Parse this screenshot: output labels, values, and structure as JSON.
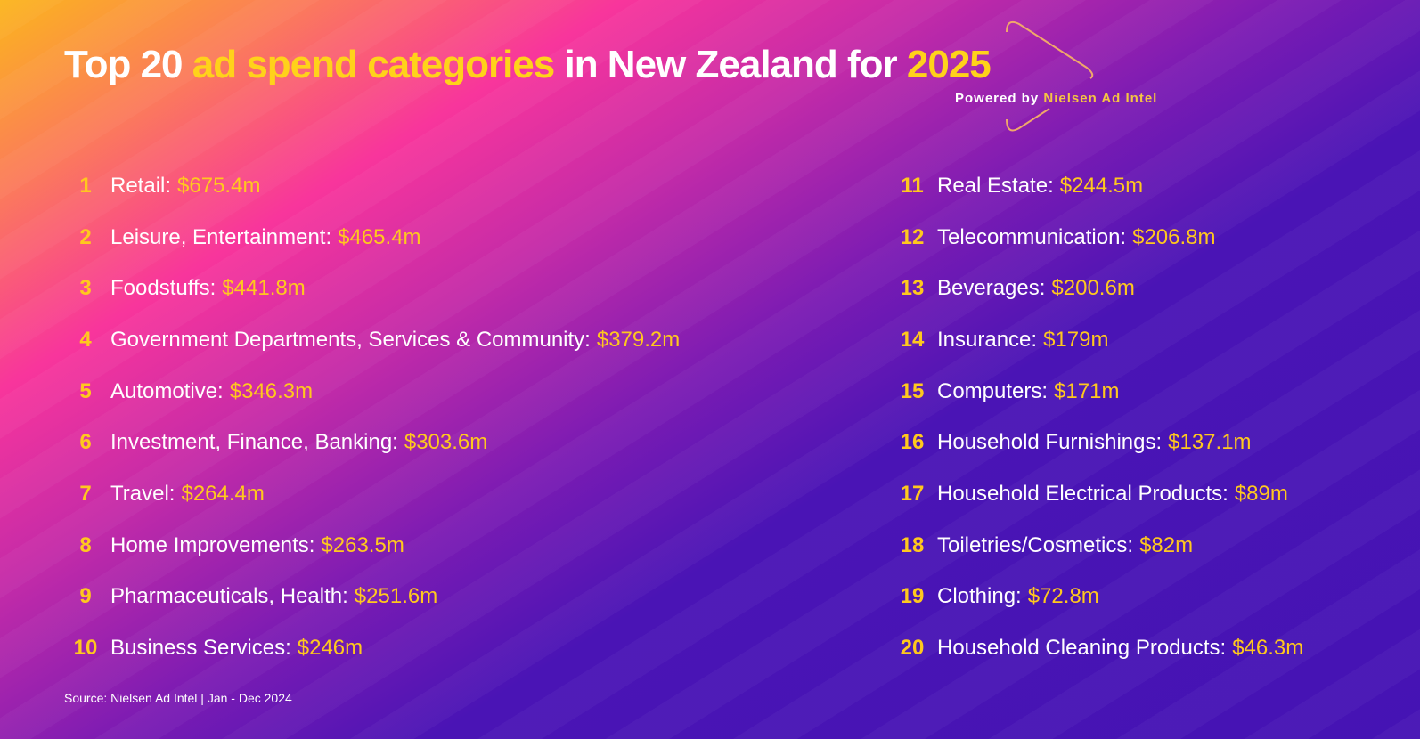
{
  "title": {
    "part1": "Top 20",
    "part2": "ad spend categories",
    "part3": "in New Zealand for",
    "part4": "2025"
  },
  "powered": {
    "prefix": "Powered by",
    "brand": "Nielsen Ad Intel"
  },
  "colors": {
    "accent": "#ffd21a",
    "text": "#ffffff",
    "bg_start": "#fbb51d",
    "bg_mid": "#f8359c",
    "bg_end": "#4513b4"
  },
  "items": [
    {
      "rank": "1",
      "label": "Retail:",
      "value": "$675.4m"
    },
    {
      "rank": "2",
      "label": "Leisure, Entertainment:",
      "value": "$465.4m"
    },
    {
      "rank": "3",
      "label": "Foodstuffs:",
      "value": "$441.8m"
    },
    {
      "rank": "4",
      "label": "Government Departments, Services & Community:",
      "value": "$379.2m"
    },
    {
      "rank": "5",
      "label": "Automotive:",
      "value": "$346.3m"
    },
    {
      "rank": "6",
      "label": "Investment, Finance, Banking:",
      "value": "$303.6m"
    },
    {
      "rank": "7",
      "label": "Travel:",
      "value": "$264.4m"
    },
    {
      "rank": "8",
      "label": "Home Improvements:",
      "value": "$263.5m"
    },
    {
      "rank": "9",
      "label": "Pharmaceuticals, Health:",
      "value": "$251.6m"
    },
    {
      "rank": "10",
      "label": "Business Services:",
      "value": "$246m"
    },
    {
      "rank": "11",
      "label": "Real Estate:",
      "value": "$244.5m"
    },
    {
      "rank": "12",
      "label": "Telecommunication:",
      "value": "$206.8m"
    },
    {
      "rank": "13",
      "label": "Beverages:",
      "value": "$200.6m"
    },
    {
      "rank": "14",
      "label": "Insurance:",
      "value": "$179m"
    },
    {
      "rank": "15",
      "label": "Computers:",
      "value": "$171m"
    },
    {
      "rank": "16",
      "label": "Household Furnishings:",
      "value": "$137.1m"
    },
    {
      "rank": "17",
      "label": "Household Electrical Products:",
      "value": "$89m"
    },
    {
      "rank": "18",
      "label": "Toiletries/Cosmetics:",
      "value": "$82m"
    },
    {
      "rank": "19",
      "label": "Clothing:",
      "value": "$72.8m"
    },
    {
      "rank": "20",
      "label": "Household Cleaning Products:",
      "value": "$46.3m"
    }
  ],
  "source": "Source: Nielsen Ad Intel | Jan - Dec 2024"
}
